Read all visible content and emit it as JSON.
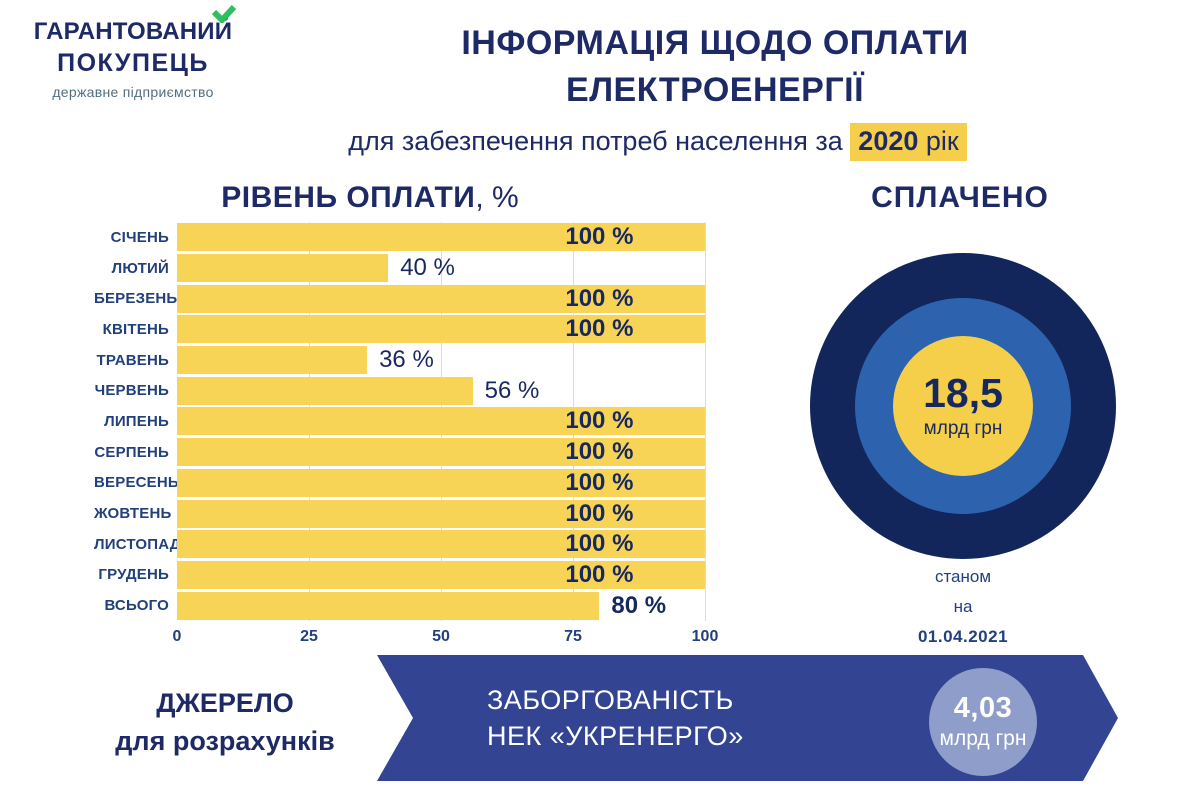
{
  "logo": {
    "line1": "ГАРАНТОВАНИЙ",
    "line2": "ПОКУПЕЦЬ",
    "subtitle": "державне підприємство"
  },
  "header": {
    "title_line1": "ІНФОРМАЦІЯ ЩОДО ОПЛАТИ",
    "title_line2": "ЕЛЕКТРОЕНЕРГІЇ",
    "subtitle_prefix": "для забезпечення потреб населення за ",
    "subtitle_year": "2020",
    "subtitle_suffix": " рік"
  },
  "chart": {
    "heading": "РІВЕНЬ ОПЛАТИ",
    "heading_suffix": ", %"
  },
  "chart_data": {
    "type": "bar",
    "orientation": "horizontal",
    "title": "РІВЕНЬ ОПЛАТИ, %",
    "categories": [
      "СІЧЕНЬ",
      "ЛЮТИЙ",
      "БЕРЕЗЕНЬ",
      "КВІТЕНЬ",
      "ТРАВЕНЬ",
      "ЧЕРВЕНЬ",
      "ЛИПЕНЬ",
      "СЕРПЕНЬ",
      "ВЕРЕСЕНЬ",
      "ЖОВТЕНЬ",
      "ЛИСТОПАД",
      "ГРУДЕНЬ",
      "ВСЬОГО"
    ],
    "values": [
      100,
      40,
      100,
      100,
      36,
      56,
      100,
      100,
      100,
      100,
      100,
      100,
      80
    ],
    "labels": [
      "100 %",
      "40 %",
      "100 %",
      "100 %",
      "36 %",
      "56 %",
      "100 %",
      "100 %",
      "100 %",
      "100 %",
      "100 %",
      "100 %",
      "80 %"
    ],
    "label_bold": [
      true,
      false,
      true,
      true,
      false,
      false,
      true,
      true,
      true,
      true,
      true,
      true,
      true
    ],
    "xlim": [
      0,
      100
    ],
    "x_ticks": [
      0,
      25,
      50,
      75,
      100
    ],
    "grid": true,
    "legend": "none",
    "bar_color": "#f8d456"
  },
  "paid": {
    "title": "СПЛАЧЕНО",
    "amount": "18,5",
    "unit": "млрд грн",
    "as_of_line1": "станом",
    "as_of_line2": "на",
    "as_of_date": "01.04.2021"
  },
  "banner": {
    "source_line1": "ДЖЕРЕЛО",
    "source_line2": "для розрахунків",
    "debt_line1": "ЗАБОРГОВАНІСТЬ",
    "debt_line2": "НЕК «УКРЕНЕРГО»",
    "debt_amount": "4,03",
    "debt_unit": "млрд грн"
  },
  "colors": {
    "navy_text": "#1e2a66",
    "bar_yellow": "#f8d456",
    "highlight_yellow": "#f5cf4b",
    "outer_ring": "#12265c",
    "middle_ring": "#2d63ae",
    "inner_circle": "#f6cf4a",
    "ribbon_blue": "#324492",
    "ribbon_circle": "#8e9dc9",
    "logo_green": "#2fbf61",
    "logo_sub": "#4f6f7f",
    "gridline": "#dcdcdc",
    "month_label": "#22407c",
    "value_label": "#16285f"
  }
}
